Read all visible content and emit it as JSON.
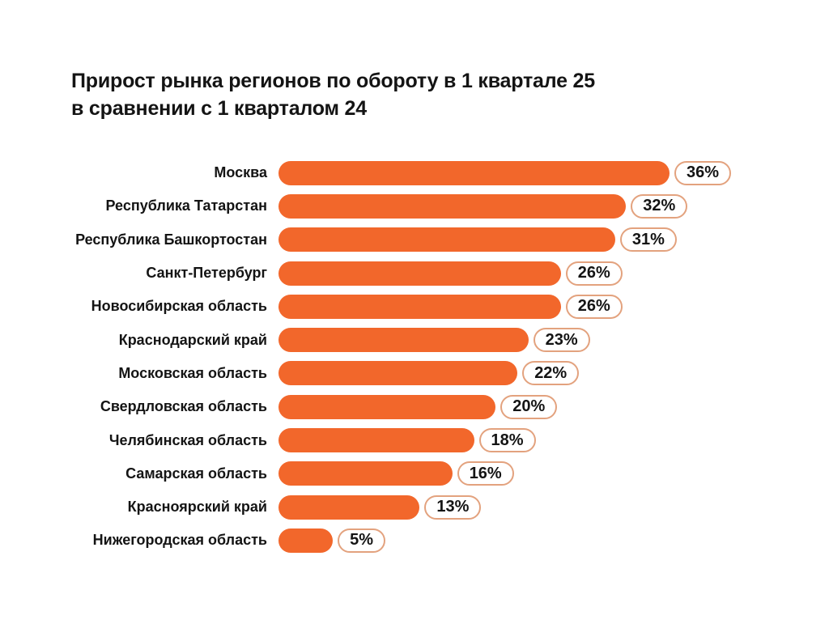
{
  "page": {
    "background": "#ffffff"
  },
  "title": {
    "line1": "Прирост рынка регионов по обороту в 1 квартале 25",
    "line2": "в сравнении с 1 кварталом 24"
  },
  "chart_data": {
    "type": "bar",
    "orientation": "horizontal",
    "title": "Прирост рынка регионов по обороту в 1 квартале 25 в сравнении с 1 кварталом 24",
    "categories": [
      "Москва",
      "Республика Татарстан",
      "Республика Башкортостан",
      "Санкт-Петербург",
      "Новосибирская область",
      "Краснодарский край",
      "Московская область",
      "Свердловская область",
      "Челябинская область",
      "Самарская область",
      "Красноярский край",
      "Нижегородская область"
    ],
    "values": [
      36,
      32,
      31,
      26,
      26,
      23,
      22,
      20,
      18,
      16,
      13,
      5
    ],
    "value_suffix": "%",
    "xlim": [
      0,
      36
    ],
    "grid": false,
    "legend": "none",
    "data_labels": "pill-badge-at-bar-end",
    "bar_color": "#F2672B",
    "badge_border_color": "#E3A27E",
    "badge_background": "#ffffff",
    "text_color": "#141414"
  }
}
